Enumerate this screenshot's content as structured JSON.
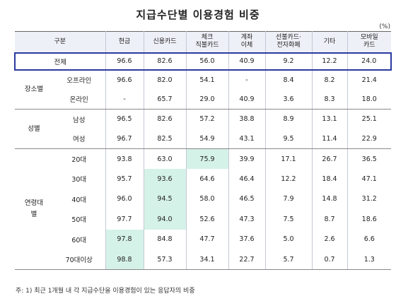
{
  "title": "지급수단별 이용경험 비중",
  "unit": "(%)",
  "headers": [
    "구분",
    "현금",
    "신용카드",
    "체크\n직불카드",
    "계좌\n이체",
    "선불카드·\n전자화폐",
    "기타",
    "모바일\n카드"
  ],
  "total": {
    "label": "전체",
    "values": [
      "96.6",
      "82.6",
      "56.0",
      "40.9",
      "9.2",
      "12.2",
      "24.0"
    ]
  },
  "groups": [
    {
      "label": "장소별",
      "rows": [
        {
          "label": "오프라인",
          "values": [
            "96.6",
            "82.0",
            "54.1",
            "-",
            "8.4",
            "8.2",
            "21.4"
          ]
        },
        {
          "label": "온라인",
          "values": [
            "-",
            "65.7",
            "29.0",
            "40.9",
            "3.6",
            "8.3",
            "18.0"
          ]
        }
      ]
    },
    {
      "label": "성별",
      "rows": [
        {
          "label": "남성",
          "values": [
            "96.5",
            "82.6",
            "57.2",
            "38.8",
            "8.9",
            "13.1",
            "25.1"
          ]
        },
        {
          "label": "여성",
          "values": [
            "96.7",
            "82.5",
            "54.9",
            "43.1",
            "9.5",
            "11.4",
            "22.9"
          ]
        }
      ]
    },
    {
      "label": "연령대\n별",
      "rows": [
        {
          "label": "20대",
          "values": [
            "93.8",
            "63.0",
            "75.9",
            "39.9",
            "17.1",
            "26.7",
            "36.5"
          ],
          "highlight": [
            2
          ]
        },
        {
          "label": "30대",
          "values": [
            "95.7",
            "93.6",
            "64.6",
            "46.4",
            "12.2",
            "18.4",
            "47.1"
          ],
          "highlight": [
            1
          ]
        },
        {
          "label": "40대",
          "values": [
            "96.0",
            "94.5",
            "58.0",
            "46.5",
            "7.9",
            "14.8",
            "31.2"
          ],
          "highlight": [
            1
          ]
        },
        {
          "label": "50대",
          "values": [
            "97.7",
            "94.0",
            "52.6",
            "47.3",
            "7.5",
            "8.7",
            "18.6"
          ],
          "highlight": [
            1
          ]
        },
        {
          "label": "60대",
          "values": [
            "97.8",
            "84.8",
            "47.7",
            "37.6",
            "5.0",
            "2.6",
            "6.6"
          ],
          "highlight": [
            0
          ]
        },
        {
          "label": "70대이상",
          "values": [
            "98.8",
            "57.3",
            "34.1",
            "22.7",
            "5.7",
            "0.7",
            "1.3"
          ],
          "highlight": [
            0
          ]
        }
      ]
    }
  ],
  "note": "주: 1) 최근 1개월 내 각 지급수단을 이용경험이 있는 응답자의 비중",
  "colors": {
    "total_border": "#2a3aa0",
    "highlight": "#d5f2e8",
    "header_bg": "#eef0f7"
  }
}
